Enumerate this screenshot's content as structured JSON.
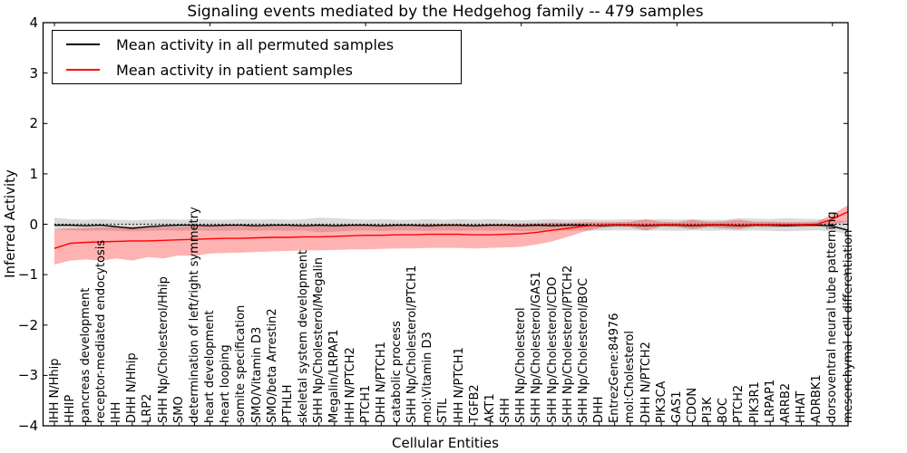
{
  "chart_data": {
    "type": "line",
    "title": "Signaling events mediated by the Hedgehog family -- 479 samples",
    "xlabel": "Cellular Entities",
    "ylabel": "Inferred Activity",
    "ylim": [
      -4,
      4
    ],
    "yticks": [
      4,
      3,
      2,
      1,
      0,
      -1,
      -2,
      -3,
      -4
    ],
    "grid": false,
    "legend_position": "upper left",
    "zero_line": 0,
    "top_tick_indices": [
      0,
      10,
      20,
      30,
      40,
      50
    ],
    "categories": [
      "IHH N/Hhip",
      "HHIP",
      "pancreas development",
      "receptor-mediated endocytosis",
      "IHH",
      "DHH N/Hhip",
      "LRP2",
      "SHH Np/Cholesterol/Hhip",
      "SMO",
      "determination of left/right symmetry",
      "heart development",
      "heart looping",
      "somite specification",
      "SMO/Vitamin D3",
      "SMO/beta Arrestin2",
      "PTHLH",
      "skeletal system development",
      "SHH Np/Cholesterol/Megalin",
      "Megalin/LRPAP1",
      "IHH N/PTCH2",
      "PTCH1",
      "DHH N/PTCH1",
      "catabolic process",
      "SHH Np/Cholesterol/PTCH1",
      "mol:Vitamin D3",
      "STIL",
      "IHH N/PTCH1",
      "TGFB2",
      "AKT1",
      "SHH",
      "SHH Np/Cholesterol",
      "SHH Np/Cholesterol/GAS1",
      "SHH Np/Cholesterol/CDO",
      "SHH Np/Cholesterol/PTCH2",
      "SHH Np/Cholesterol/BOC",
      "DHH",
      "EntrezGene:84976",
      "mol:Cholesterol",
      "DHH N/PTCH2",
      "PIK3CA",
      "GAS1",
      "CDON",
      "PI3K",
      "BOC",
      "PTCH2",
      "PIK3R1",
      "LRPAP1",
      "ARRB2",
      "HHAT",
      "ADRBK1",
      "dorsoventral neural tube patterning",
      "mesenchymal cell differentiation"
    ],
    "series": [
      {
        "name": "Mean activity in all permuted samples",
        "color": "#000000",
        "band_color": "#555555",
        "band_opacity": 0.22,
        "values": [
          -0.02,
          -0.02,
          -0.03,
          -0.02,
          -0.05,
          -0.08,
          -0.05,
          -0.03,
          -0.02,
          -0.02,
          -0.03,
          -0.02,
          -0.02,
          -0.03,
          -0.02,
          -0.02,
          -0.03,
          -0.02,
          -0.03,
          -0.02,
          -0.02,
          -0.03,
          -0.02,
          -0.02,
          -0.03,
          -0.02,
          -0.02,
          -0.03,
          -0.02,
          -0.02,
          -0.03,
          -0.02,
          -0.03,
          -0.02,
          -0.02,
          -0.03,
          -0.02,
          -0.02,
          -0.03,
          -0.02,
          -0.02,
          -0.03,
          -0.02,
          -0.02,
          -0.03,
          -0.02,
          -0.02,
          -0.03,
          -0.02,
          -0.02,
          -0.04,
          -0.12
        ],
        "band_upper": [
          0.13,
          0.1,
          0.09,
          0.1,
          0.09,
          0.08,
          0.09,
          0.1,
          0.09,
          0.1,
          0.09,
          0.09,
          0.1,
          0.09,
          0.1,
          0.09,
          0.1,
          0.13,
          0.12,
          0.1,
          0.09,
          0.1,
          0.09,
          0.09,
          0.1,
          0.09,
          0.1,
          0.09,
          0.1,
          0.09,
          0.08,
          0.09,
          0.1,
          0.09,
          0.1,
          0.09,
          0.09,
          0.1,
          0.09,
          0.1,
          0.09,
          0.1,
          0.09,
          0.09,
          0.12,
          0.11,
          0.1,
          0.12,
          0.11,
          0.1,
          0.08,
          0.06
        ],
        "band_lower": [
          -0.1,
          -0.12,
          -0.13,
          -0.12,
          -0.13,
          -0.14,
          -0.13,
          -0.12,
          -0.13,
          -0.12,
          -0.13,
          -0.13,
          -0.12,
          -0.13,
          -0.12,
          -0.13,
          -0.12,
          -0.16,
          -0.15,
          -0.13,
          -0.12,
          -0.13,
          -0.12,
          -0.12,
          -0.13,
          -0.12,
          -0.13,
          -0.12,
          -0.13,
          -0.12,
          -0.14,
          -0.13,
          -0.12,
          -0.13,
          -0.12,
          -0.13,
          -0.12,
          -0.12,
          -0.13,
          -0.12,
          -0.13,
          -0.12,
          -0.13,
          -0.12,
          -0.13,
          -0.12,
          -0.13,
          -0.14,
          -0.13,
          -0.12,
          -0.14,
          -0.2
        ]
      },
      {
        "name": "Mean activity in patient samples",
        "color": "#ff0000",
        "band_color": "#ff0000",
        "band_opacity": 0.3,
        "values": [
          -0.48,
          -0.38,
          -0.36,
          -0.35,
          -0.34,
          -0.33,
          -0.33,
          -0.32,
          -0.31,
          -0.3,
          -0.29,
          -0.28,
          -0.28,
          -0.27,
          -0.26,
          -0.26,
          -0.25,
          -0.25,
          -0.24,
          -0.23,
          -0.22,
          -0.22,
          -0.21,
          -0.21,
          -0.2,
          -0.2,
          -0.2,
          -0.21,
          -0.21,
          -0.2,
          -0.19,
          -0.16,
          -0.12,
          -0.08,
          -0.04,
          -0.02,
          -0.01,
          -0.01,
          -0.02,
          -0.01,
          -0.01,
          -0.02,
          -0.01,
          -0.01,
          -0.02,
          -0.01,
          -0.01,
          -0.01,
          -0.01,
          0.0,
          0.1,
          0.25
        ],
        "band_upper": [
          -0.1,
          -0.08,
          -0.07,
          -0.06,
          -0.06,
          -0.05,
          -0.06,
          -0.05,
          -0.05,
          -0.04,
          -0.04,
          -0.03,
          -0.04,
          -0.03,
          -0.03,
          -0.04,
          -0.03,
          -0.03,
          -0.02,
          -0.02,
          -0.01,
          -0.02,
          -0.01,
          -0.01,
          0.0,
          0.0,
          0.0,
          -0.01,
          0.0,
          0.0,
          0.01,
          0.02,
          0.03,
          0.03,
          0.04,
          0.04,
          0.04,
          0.05,
          0.1,
          0.05,
          0.04,
          0.09,
          0.05,
          0.06,
          0.09,
          0.05,
          0.05,
          0.04,
          0.04,
          0.05,
          0.2,
          0.38
        ],
        "band_lower": [
          -0.8,
          -0.72,
          -0.7,
          -0.72,
          -0.68,
          -0.72,
          -0.65,
          -0.68,
          -0.62,
          -0.63,
          -0.58,
          -0.57,
          -0.56,
          -0.55,
          -0.54,
          -0.53,
          -0.52,
          -0.52,
          -0.51,
          -0.5,
          -0.5,
          -0.49,
          -0.48,
          -0.48,
          -0.47,
          -0.47,
          -0.47,
          -0.48,
          -0.47,
          -0.46,
          -0.45,
          -0.4,
          -0.34,
          -0.25,
          -0.15,
          -0.08,
          -0.05,
          -0.06,
          -0.12,
          -0.05,
          -0.06,
          -0.1,
          -0.06,
          -0.08,
          -0.1,
          -0.05,
          -0.06,
          -0.05,
          -0.05,
          -0.04,
          0.0,
          0.05
        ]
      }
    ]
  }
}
